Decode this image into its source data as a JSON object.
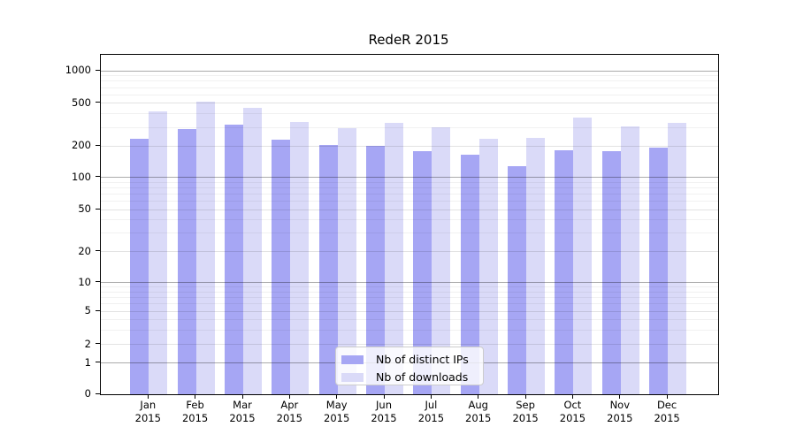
{
  "title": "RedeR 2015",
  "chart_data": {
    "type": "bar",
    "title": "RedeR 2015",
    "categories": [
      "Jan",
      "Feb",
      "Mar",
      "Apr",
      "May",
      "Jun",
      "Jul",
      "Aug",
      "Sep",
      "Oct",
      "Nov",
      "Dec"
    ],
    "x_year_label": "2015",
    "series": [
      {
        "name": "Nb of distinct IPs",
        "color": "#a6a6f4",
        "values": [
          235,
          290,
          320,
          230,
          205,
          200,
          178,
          166,
          128,
          183,
          180,
          196
        ]
      },
      {
        "name": "Nb of downloads",
        "color": "#dadaf8",
        "values": [
          425,
          520,
          455,
          335,
          297,
          327,
          300,
          233,
          238,
          370,
          305,
          330
        ]
      }
    ],
    "yscale": "log-like",
    "ylim": [
      0,
      1100
    ],
    "yticks": [
      0,
      1,
      2,
      5,
      10,
      20,
      50,
      100,
      200,
      500,
      1000
    ],
    "ytick_labels": [
      "0",
      "1",
      "2",
      "5",
      "10",
      "20",
      "50",
      "100",
      "200",
      "500",
      "1000"
    ],
    "grid": true,
    "legend_position": "lower center"
  },
  "legend": {
    "items": [
      {
        "label": "Nb of distinct IPs",
        "color": "#a6a6f4"
      },
      {
        "label": "Nb of downloads",
        "color": "#dadaf8"
      }
    ]
  },
  "colors": {
    "distinct_ips": "#a6a6f4",
    "downloads": "#dadaf8",
    "axis": "#000000",
    "grid_major": "#adadad",
    "grid_minor": "#f0f0f0"
  }
}
